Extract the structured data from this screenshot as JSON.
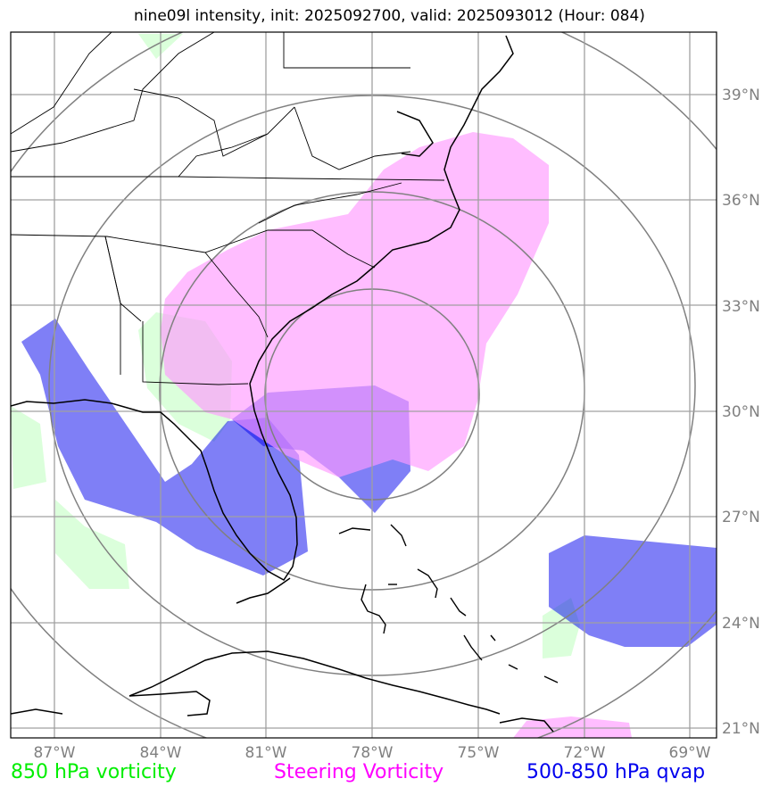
{
  "title": "nine09l intensity, init: 2025092700, valid: 2025093012 (Hour: 084)",
  "lat_labels": [
    "39°N",
    "36°N",
    "33°N",
    "30°N",
    "27°N",
    "24°N",
    "21°N"
  ],
  "lon_labels": [
    "87°W",
    "84°W",
    "81°W",
    "78°W",
    "75°W",
    "72°W",
    "69°W"
  ],
  "legend": {
    "vorticity": "850 hPa vorticity",
    "steering": "Steering Vorticity",
    "qvap": "500-850 hPa qvap"
  },
  "colors": {
    "vorticity": "#00ee00",
    "steering": "#ff00ff",
    "qvap": "#0000ee",
    "grid": "#808080"
  }
}
